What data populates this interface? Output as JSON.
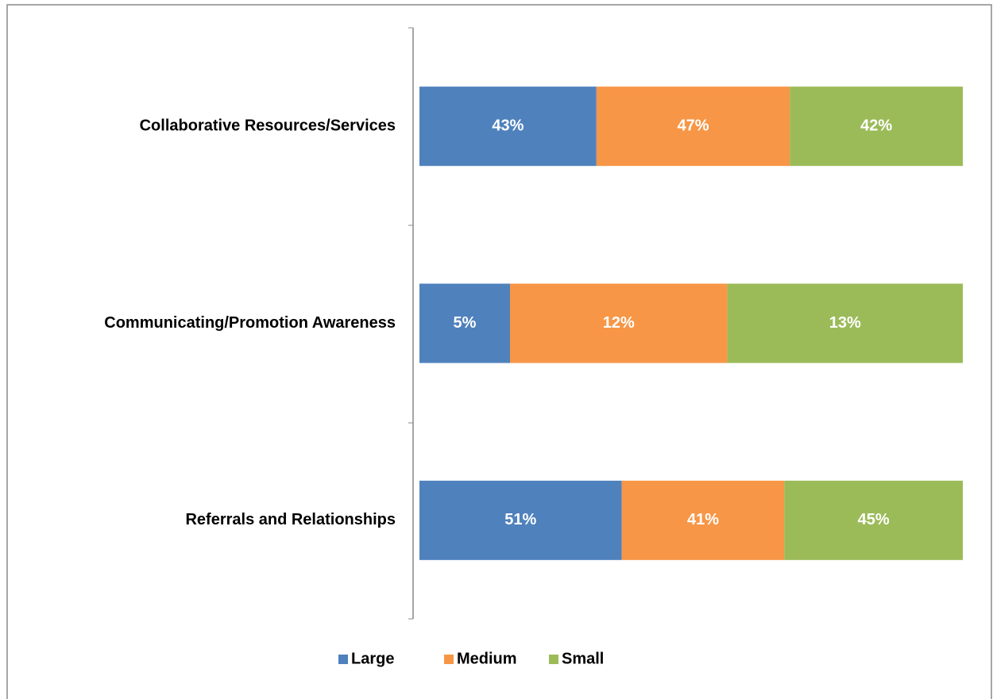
{
  "chart_data": {
    "type": "bar",
    "orientation": "horizontal",
    "stacking": "percent",
    "categories": [
      "Collaborative Resources/Services",
      "Communicating/Promotion Awareness",
      "Referrals and Relationships"
    ],
    "series": [
      {
        "name": "Large",
        "color": "#4f81bd",
        "values": [
          43,
          5,
          51
        ],
        "value_labels": [
          "43%",
          "5%",
          "51%"
        ]
      },
      {
        "name": "Medium",
        "color": "#f79646",
        "values": [
          47,
          12,
          41
        ],
        "value_labels": [
          "47%",
          "12%",
          "41%"
        ]
      },
      {
        "name": "Small",
        "color": "#9bbb59",
        "values": [
          42,
          13,
          45
        ],
        "value_labels": [
          "42%",
          "13%",
          "45%"
        ]
      }
    ],
    "legend": "bottom"
  }
}
